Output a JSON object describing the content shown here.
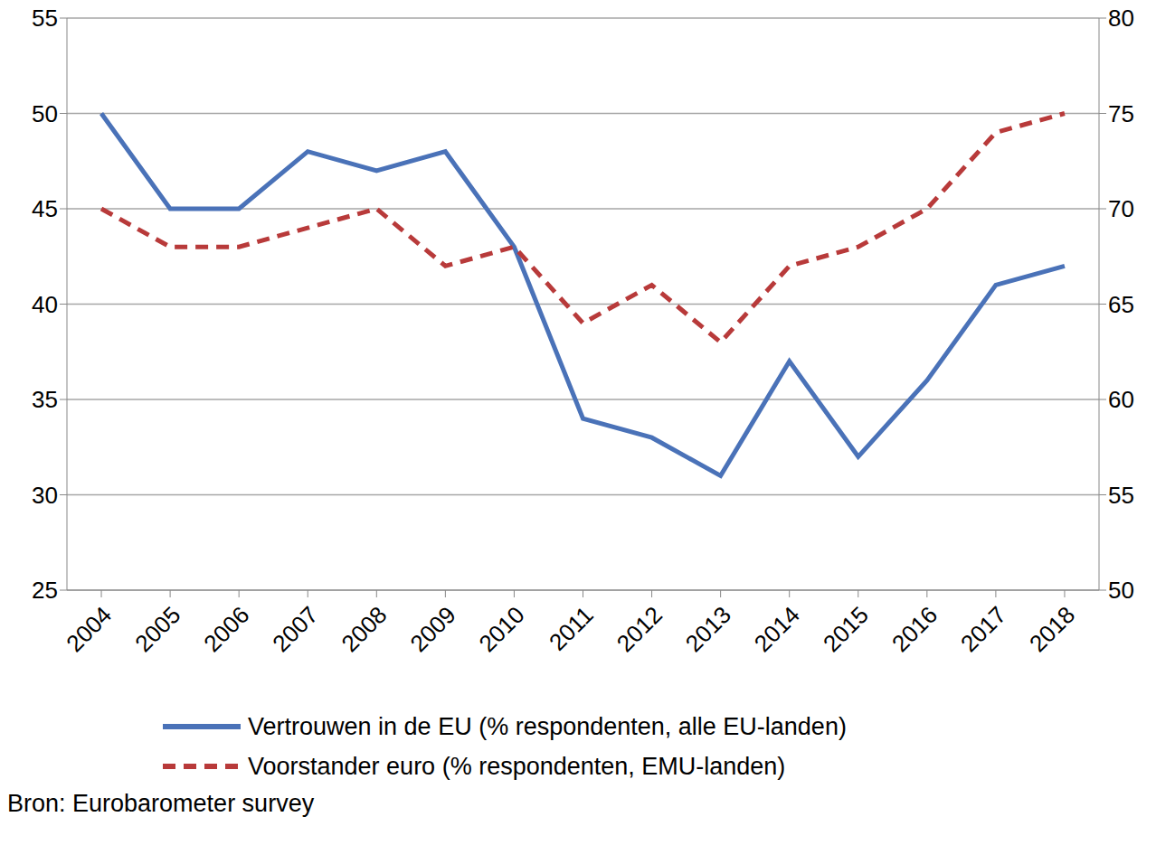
{
  "chart_data": {
    "type": "line",
    "categories": [
      "2004",
      "2005",
      "2006",
      "2007",
      "2008",
      "2009",
      "2010",
      "2011",
      "2012",
      "2013",
      "2014",
      "2015",
      "2016",
      "2017",
      "2018"
    ],
    "series": [
      {
        "name": "Vertrouwen in de EU (% respondenten, alle EU-landen)",
        "color": "#4a72b8",
        "line_style": "solid",
        "axis": "y",
        "values": [
          50,
          45,
          45,
          48,
          47,
          48,
          43,
          34,
          33,
          31,
          37,
          32,
          36,
          41,
          42
        ]
      },
      {
        "name": "Voorstander euro (% respondenten, EMU-landen)",
        "color": "#b83a3a",
        "line_style": "dashed",
        "axis": "y2",
        "values": [
          70,
          68,
          68,
          69,
          70,
          67,
          68,
          64,
          66,
          63,
          67,
          68,
          70,
          74,
          75
        ]
      }
    ],
    "ylim": [
      25,
      55
    ],
    "yticks": [
      25,
      30,
      35,
      40,
      45,
      50,
      55
    ],
    "y2lim": [
      50,
      80
    ],
    "y2ticks": [
      50,
      55,
      60,
      65,
      70,
      75,
      80
    ],
    "grid": true,
    "legend": "bottom",
    "source": "Bron: Eurobarometer survey"
  }
}
